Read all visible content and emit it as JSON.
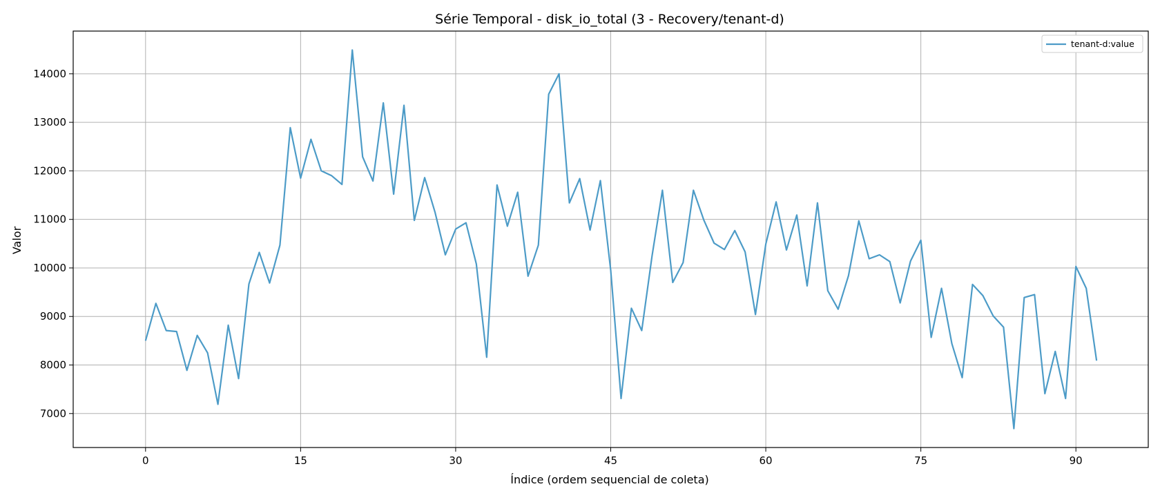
{
  "chart_data": {
    "type": "line",
    "title": "Série Temporal - disk_io_total (3 - Recovery/tenant-d)",
    "xlabel": "Índice (ordem sequencial de coleta)",
    "ylabel": "Valor",
    "xlim": [
      -7,
      97
    ],
    "ylim": [
      6300,
      14880
    ],
    "xticks": [
      0,
      15,
      30,
      45,
      60,
      75,
      90
    ],
    "yticks": [
      7000,
      8000,
      9000,
      10000,
      11000,
      12000,
      13000,
      14000
    ],
    "grid": true,
    "legend_position": "top-right",
    "series": [
      {
        "name": "tenant-d:value",
        "color": "#4c9bc7",
        "values": [
          8500,
          9270,
          8710,
          8690,
          7890,
          8610,
          8250,
          7190,
          8820,
          7720,
          9670,
          10320,
          9690,
          10470,
          12890,
          11850,
          12650,
          12000,
          11900,
          11720,
          14490,
          12290,
          11790,
          13400,
          11520,
          13350,
          10980,
          11860,
          11150,
          10270,
          10800,
          10930,
          10080,
          8160,
          11710,
          10860,
          11560,
          9830,
          10470,
          13580,
          14000,
          11340,
          11840,
          10780,
          11800,
          9950,
          7310,
          9170,
          8710,
          10250,
          11600,
          9700,
          10110,
          11600,
          10990,
          10510,
          10380,
          10770,
          10330,
          9040,
          10490,
          11360,
          10370,
          11090,
          9630,
          11340,
          9530,
          9150,
          9840,
          10970,
          10190,
          10270,
          10130,
          9280,
          10140,
          10570,
          8570,
          9580,
          8440,
          7740,
          9660,
          9430,
          9010,
          8780,
          6690,
          9390,
          9450,
          7410,
          8280,
          7310,
          10030,
          9580,
          8090
        ]
      }
    ]
  }
}
